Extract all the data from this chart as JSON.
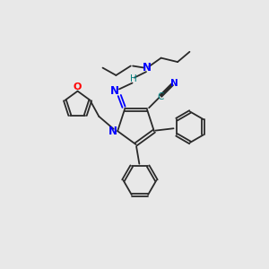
{
  "background_color": "#e8e8e8",
  "bond_color": "#2a2a2a",
  "nitrogen_color": "#0000ff",
  "oxygen_color": "#ff0000",
  "cyan_label_color": "#008080",
  "h_color": "#008080",
  "figsize": [
    3.0,
    3.0
  ],
  "dpi": 100,
  "xlim": [
    0,
    10
  ],
  "ylim": [
    0,
    10
  ]
}
